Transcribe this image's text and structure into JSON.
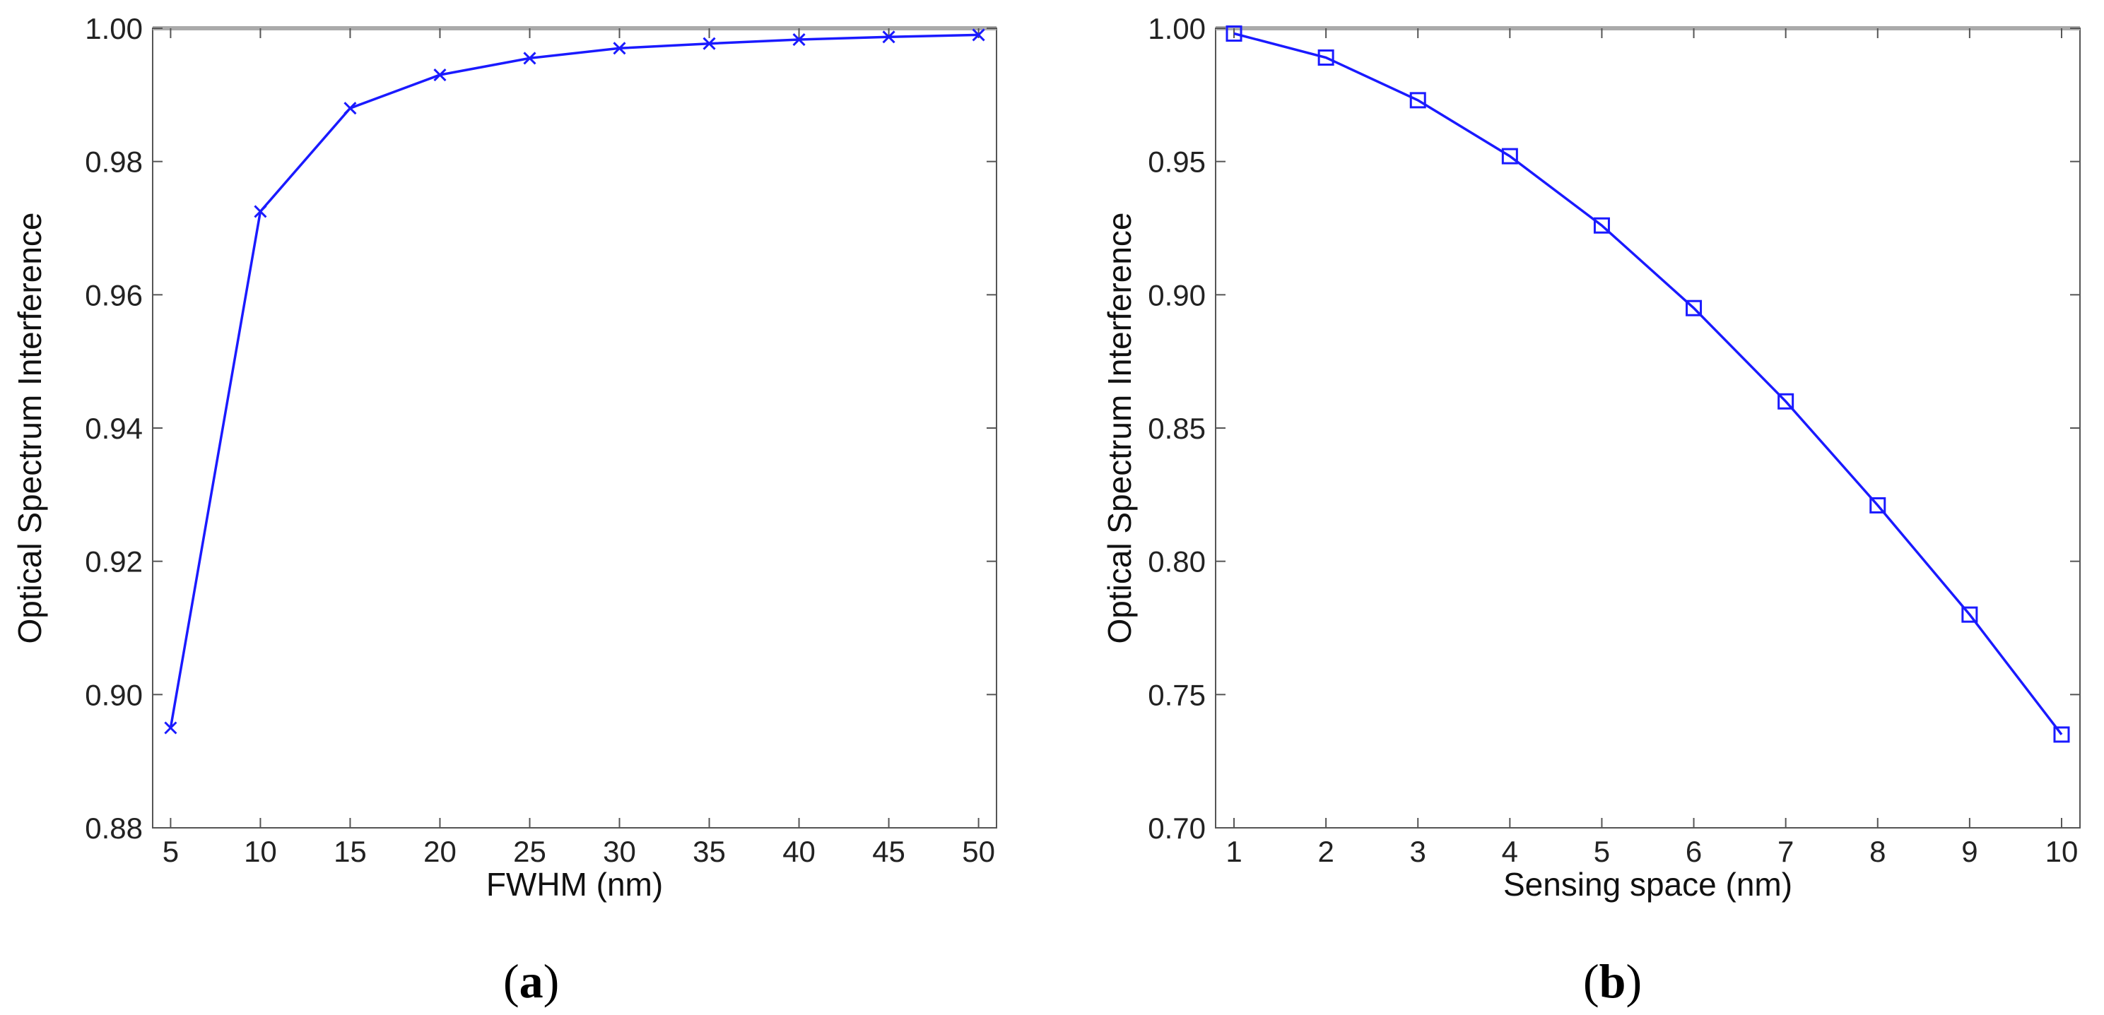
{
  "chart_data": [
    {
      "id": "a",
      "type": "line",
      "caption_letter": "a",
      "xlabel": "FWHM (nm)",
      "ylabel": "Optical Spectrum Interference",
      "title": "",
      "xlim": [
        4,
        51
      ],
      "ylim": [
        0.88,
        1.0
      ],
      "xticks": [
        5,
        10,
        15,
        20,
        25,
        30,
        35,
        40,
        45,
        50
      ],
      "xtick_labels": [
        "5",
        "10",
        "15",
        "20",
        "25",
        "30",
        "35",
        "40",
        "45",
        "50"
      ],
      "yticks": [
        0.88,
        0.9,
        0.92,
        0.94,
        0.96,
        0.98,
        1.0
      ],
      "ytick_labels": [
        "0.88",
        "0.90",
        "0.92",
        "0.94",
        "0.96",
        "0.98",
        "1.00"
      ],
      "grid": false,
      "legend": "none",
      "marker": "x",
      "color": "#1a1aff",
      "series": [
        {
          "x": [
            5,
            10,
            15,
            20,
            25,
            30,
            35,
            40,
            45,
            50
          ],
          "values": [
            0.895,
            0.9725,
            0.988,
            0.993,
            0.9955,
            0.997,
            0.9977,
            0.9983,
            0.9987,
            0.999
          ]
        }
      ]
    },
    {
      "id": "b",
      "type": "line",
      "caption_letter": "b",
      "xlabel": "Sensing space (nm)",
      "ylabel": "Optical Spectrum Interference",
      "title": "",
      "xlim": [
        0.8,
        10.2
      ],
      "ylim": [
        0.7,
        1.0
      ],
      "xticks": [
        1,
        2,
        3,
        4,
        5,
        6,
        7,
        8,
        9,
        10
      ],
      "xtick_labels": [
        "1",
        "2",
        "3",
        "4",
        "5",
        "6",
        "7",
        "8",
        "9",
        "10"
      ],
      "yticks": [
        0.7,
        0.75,
        0.8,
        0.85,
        0.9,
        0.95,
        1.0
      ],
      "ytick_labels": [
        "0.70",
        "0.75",
        "0.80",
        "0.85",
        "0.90",
        "0.95",
        "1.00"
      ],
      "grid": false,
      "legend": "none",
      "marker": "square",
      "color": "#1a1aff",
      "series": [
        {
          "x": [
            1,
            2,
            3,
            4,
            5,
            6,
            7,
            8,
            9,
            10
          ],
          "values": [
            0.998,
            0.989,
            0.973,
            0.952,
            0.926,
            0.895,
            0.86,
            0.821,
            0.78,
            0.735
          ]
        }
      ]
    }
  ]
}
